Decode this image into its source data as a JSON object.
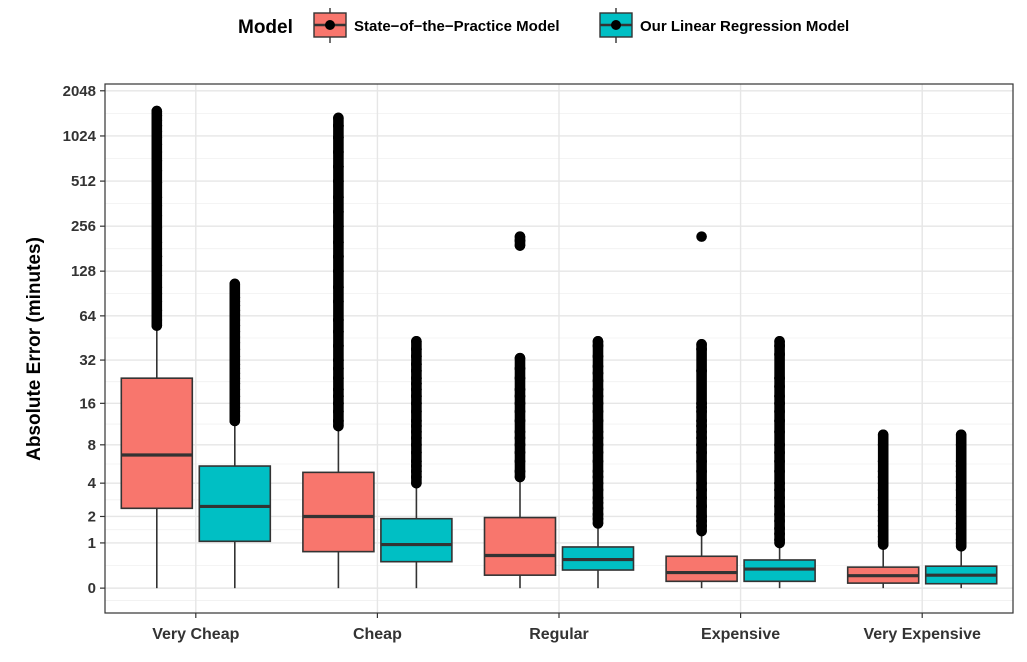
{
  "chart_data": {
    "type": "box",
    "title": "",
    "xlabel": "",
    "ylabel": "Absolute Error (minutes)",
    "y_scale": "log2(y+1)",
    "y_ticks": [
      0,
      1,
      2,
      4,
      8,
      16,
      32,
      64,
      128,
      256,
      512,
      1024,
      2048
    ],
    "y_tick_labels": [
      "0",
      "1",
      "2",
      "4",
      "8",
      "16",
      "32",
      "64",
      "128",
      "256",
      "512",
      "1024",
      "2048"
    ],
    "ylim": [
      0,
      2048
    ],
    "grid": true,
    "legend": {
      "title": "Model",
      "position": "top"
    },
    "categories": [
      "Very Cheap",
      "Cheap",
      "Regular",
      "Expensive",
      "Very Expensive"
    ],
    "series": [
      {
        "name": "State−of−the−Practice Model",
        "color": "#F8766D",
        "boxes": [
          {
            "min": 0,
            "q1": 2.4,
            "median": 6.7,
            "q3": 24,
            "max": 54,
            "outliers": [
              55,
              60,
              70,
              80,
              90,
              100,
              120,
              140,
              160,
              180,
              200,
              250,
              300,
              350,
              400,
              500,
              600,
              700,
              800,
              900,
              1000,
              1100,
              1200,
              1300,
              1400,
              1500
            ]
          },
          {
            "min": 0,
            "q1": 0.75,
            "median": 2.0,
            "q3": 4.9,
            "max": 10.5,
            "outliers": [
              11,
              12,
              14,
              16,
              18,
              20,
              24,
              28,
              32,
              40,
              50,
              60,
              80,
              100,
              128,
              160,
              200,
              256,
              320,
              400,
              512,
              640,
              800,
              1000,
              1200,
              1350
            ]
          },
          {
            "min": 0,
            "q1": 0.22,
            "median": 0.65,
            "q3": 1.95,
            "max": 4.3,
            "outliers": [
              4.5,
              5,
              6,
              7,
              8,
              9,
              10,
              12,
              14,
              16,
              18,
              20,
              24,
              28,
              33,
              190,
              205,
              218
            ]
          },
          {
            "min": 0,
            "q1": 0.11,
            "median": 0.27,
            "q3": 0.63,
            "max": 1.3,
            "outliers": [
              1.4,
              1.6,
              1.8,
              2,
              2.5,
              3,
              3.5,
              4,
              5,
              6,
              7,
              8,
              9,
              10,
              11,
              12,
              14,
              15,
              16,
              27,
              38,
              41,
              218
            ]
          },
          {
            "min": 0,
            "q1": 0.08,
            "median": 0.21,
            "q3": 0.38,
            "max": 0.9,
            "outliers": [
              0.95,
              1.05,
              1.2,
              1.4,
              1.6,
              1.8,
              2,
              2.3,
              2.6,
              3,
              3.5,
              4,
              4.5,
              5,
              6,
              8,
              9.5
            ]
          }
        ]
      },
      {
        "name": "Our Linear Regression Model",
        "color": "#00BFC4",
        "boxes": [
          {
            "min": 0,
            "q1": 1.05,
            "median": 2.5,
            "q3": 5.5,
            "max": 11.5,
            "outliers": [
              12,
              13,
              14,
              15,
              16,
              18,
              20,
              22,
              24,
              26,
              28,
              30,
              34,
              38,
              42,
              46,
              50,
              55,
              60,
              65,
              70,
              75,
              80,
              85,
              105
            ]
          },
          {
            "min": 0,
            "q1": 0.5,
            "median": 0.95,
            "q3": 1.9,
            "max": 3.8,
            "outliers": [
              4,
              4.5,
              5,
              5.5,
              6,
              7,
              8,
              9,
              10,
              11,
              12,
              14,
              16,
              18,
              20,
              22,
              24,
              27,
              30,
              34,
              38,
              43
            ]
          },
          {
            "min": 0,
            "q1": 0.32,
            "median": 0.55,
            "q3": 0.88,
            "max": 1.6,
            "outliers": [
              1.7,
              1.9,
              2.1,
              2.4,
              2.7,
              3,
              3.5,
              4,
              4.5,
              5,
              6,
              7,
              8,
              9,
              10,
              12,
              14,
              16,
              18,
              20,
              23,
              26,
              29,
              34,
              40,
              43
            ]
          },
          {
            "min": 0,
            "q1": 0.11,
            "median": 0.34,
            "q3": 0.54,
            "max": 0.95,
            "outliers": [
              1,
              1.1,
              1.3,
              1.5,
              1.8,
              2.1,
              2.5,
              3,
              3.5,
              4,
              5,
              6,
              7,
              8,
              10,
              12,
              14,
              16,
              18,
              21,
              24,
              35,
              40,
              43
            ]
          },
          {
            "min": 0,
            "q1": 0.07,
            "median": 0.22,
            "q3": 0.4,
            "max": 0.85,
            "outliers": [
              0.9,
              1,
              1.1,
              1.3,
              1.5,
              1.7,
              2,
              2.3,
              2.6,
              3,
              3.5,
              4,
              4.5,
              5,
              5.5,
              6,
              8,
              9.5
            ]
          }
        ]
      }
    ]
  }
}
